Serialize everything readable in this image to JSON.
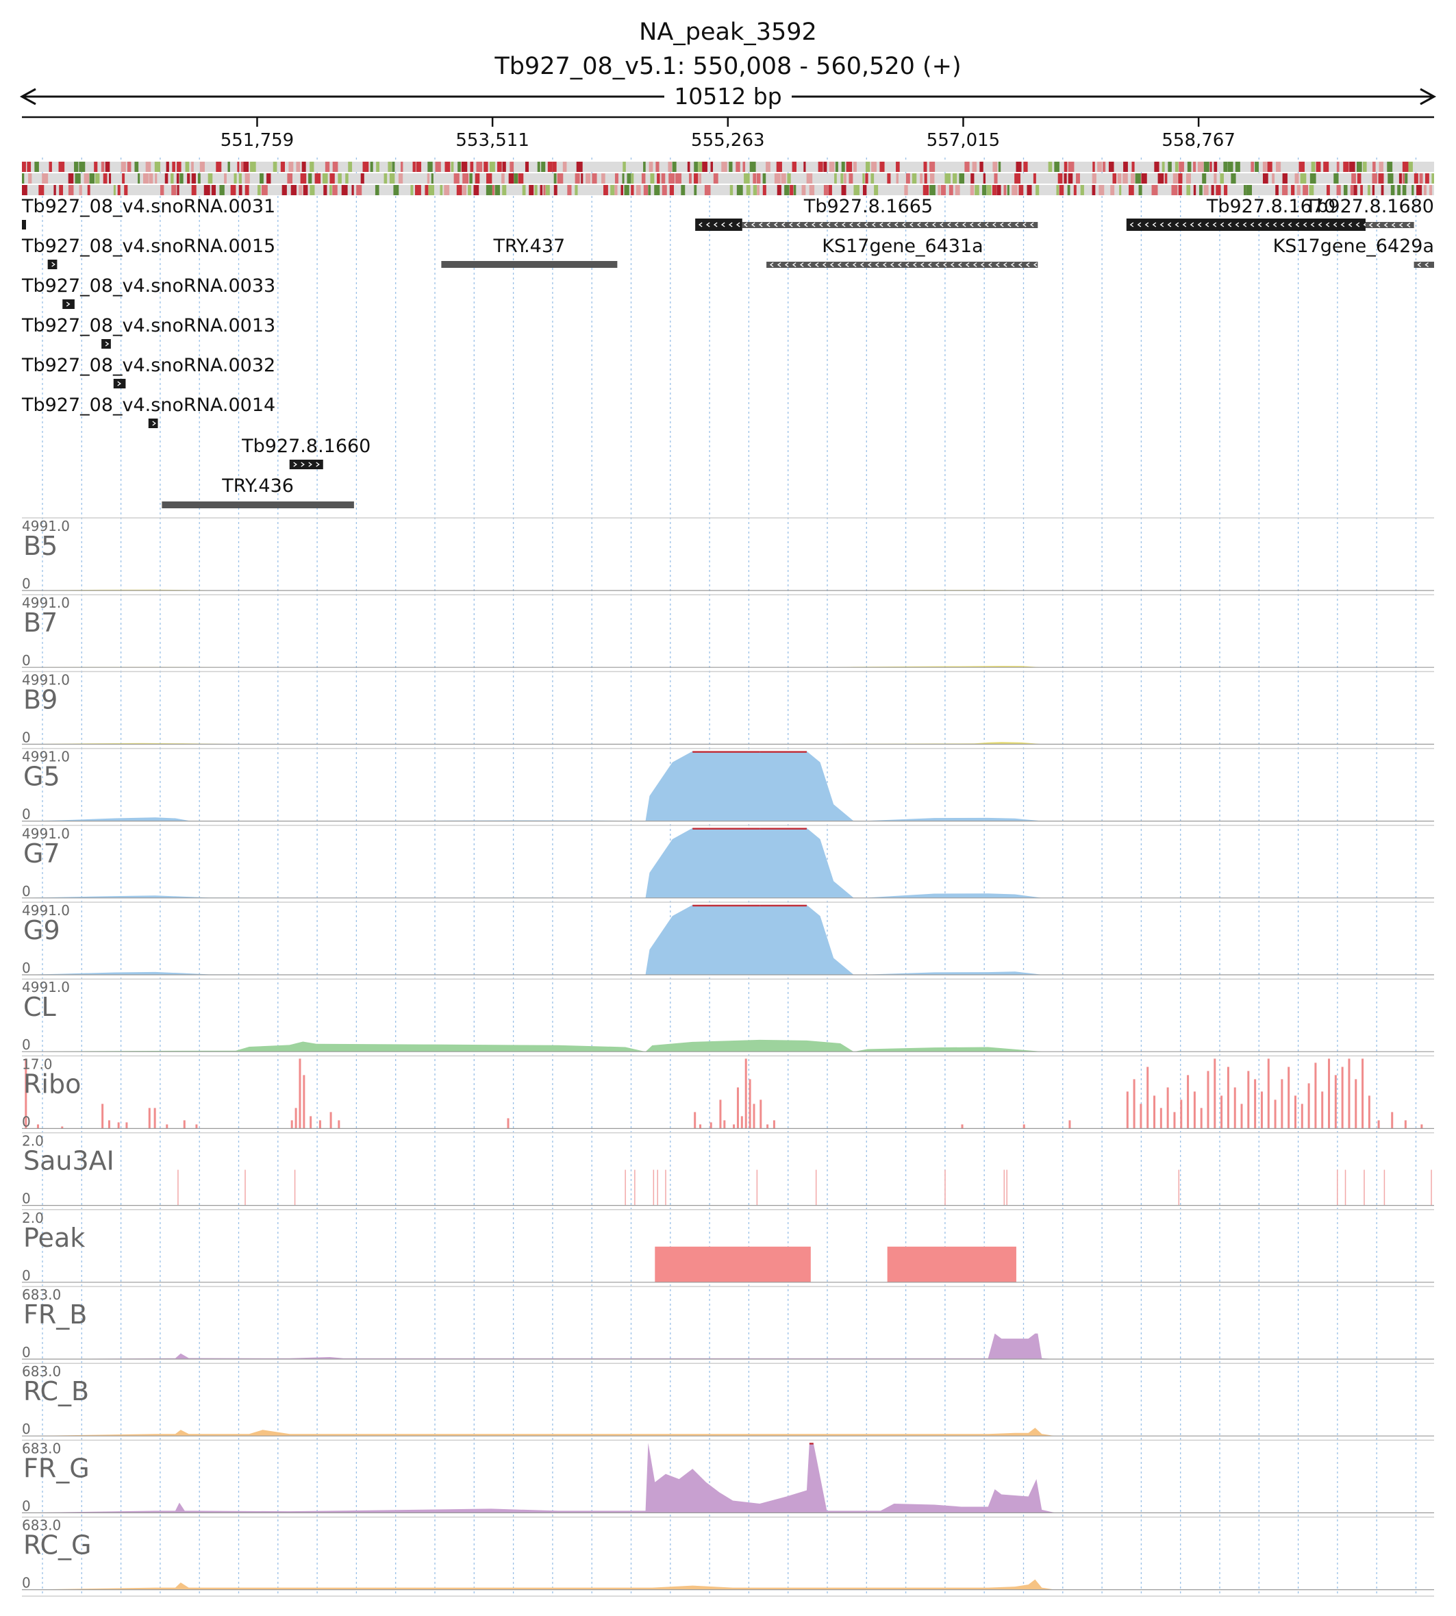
{
  "header": {
    "title": "NA_peak_3592",
    "location": "Tb927_08_v5.1: 550,008 - 560,520 (+)",
    "span_label": "10512 bp"
  },
  "ruler": {
    "start": 550008,
    "end": 560520,
    "ticks": [
      {
        "pos": 551759,
        "label": "551,759"
      },
      {
        "pos": 553511,
        "label": "553,511"
      },
      {
        "pos": 555263,
        "label": "555,263"
      },
      {
        "pos": 557015,
        "label": "557,015"
      },
      {
        "pos": 558767,
        "label": "558,767"
      }
    ]
  },
  "colors": {
    "yellow": "#e6dc78",
    "blue": "#9ec8ea",
    "green": "#9dd39d",
    "ribo": "#f08c8c",
    "sau": "#f2a8a8",
    "peak": "#f48c8c",
    "purple": "#c8a0d0",
    "orange": "#f6c384",
    "gene_dark": "#1a1a1a",
    "gene_gray": "#555555",
    "grid": "#7fb0e0"
  },
  "genes": [
    {
      "label": "Tb927_08_v4.snoRNA.0031",
      "start": 550008,
      "end": 550022,
      "strand": "+",
      "style": "dark"
    },
    {
      "label": "Tb927_08_v4.snoRNA.0015",
      "start": 550200,
      "end": 550270,
      "strand": "+",
      "style": "dark"
    },
    {
      "label": "Tb927_08_v4.snoRNA.0033",
      "start": 550310,
      "end": 550400,
      "strand": "+",
      "style": "dark"
    },
    {
      "label": "Tb927_08_v4.snoRNA.0013",
      "start": 550600,
      "end": 550670,
      "strand": "+",
      "style": "dark"
    },
    {
      "label": "Tb927_08_v4.snoRNA.0032",
      "start": 550690,
      "end": 550780,
      "strand": "+",
      "style": "dark"
    },
    {
      "label": "Tb927_08_v4.snoRNA.0014",
      "start": 550950,
      "end": 551020,
      "strand": "+",
      "style": "dark"
    },
    {
      "label": "Tb927.8.1660",
      "start": 552000,
      "end": 552250,
      "strand": "+",
      "style": "dark"
    },
    {
      "label": "TRY.436",
      "start": 551050,
      "end": 552480,
      "strand": "",
      "style": "plain"
    },
    {
      "label": "TRY.437",
      "start": 553130,
      "end": 554440,
      "strand": "",
      "style": "plain"
    },
    {
      "label": "Tb927.8.1665",
      "start": 555020,
      "end": 557570,
      "strand": "-",
      "style": "split",
      "thick_end": 555370
    },
    {
      "label": "KS17gene_6431a",
      "start": 555550,
      "end": 557570,
      "strand": "-",
      "style": "gray"
    },
    {
      "label": "Tb927.8.1670",
      "start": 558230,
      "end": 560370,
      "strand": "-",
      "style": "split_right",
      "thick_end": 560010
    },
    {
      "label": "Tb927.8.1680",
      "start": 560010,
      "end": 560370,
      "strand": "-",
      "style": "gray"
    },
    {
      "label": "KS17gene_6429a",
      "start": 560370,
      "end": 560520,
      "strand": "-",
      "style": "gray"
    }
  ],
  "tracks": [
    {
      "name": "B5",
      "scale_max": "4991.0",
      "scale_min": "0",
      "color": "#e6dc78",
      "kind": "area",
      "x": [
        550008,
        550200,
        550600,
        551000,
        551400,
        551700,
        551850,
        552500,
        553000,
        553500,
        554000,
        554500,
        554850,
        555300,
        555650,
        556000,
        556200,
        556800,
        557200,
        557400,
        557600,
        558000,
        559000,
        560520
      ],
      "y": [
        0,
        25,
        55,
        60,
        25,
        5,
        15,
        20,
        20,
        18,
        20,
        18,
        10,
        10,
        0,
        5,
        20,
        45,
        40,
        25,
        5,
        3,
        3,
        0
      ]
    },
    {
      "name": "B7",
      "scale_max": "4991.0",
      "scale_min": "0",
      "color": "#e6dc78",
      "kind": "area",
      "x": [
        550008,
        550200,
        550600,
        551000,
        551400,
        551700,
        551850,
        552500,
        553500,
        554500,
        554850,
        555300,
        555650,
        556000,
        556200,
        556800,
        557000,
        557300,
        557450,
        557600,
        558000,
        560520
      ],
      "y": [
        0,
        15,
        30,
        35,
        15,
        5,
        10,
        12,
        12,
        12,
        5,
        5,
        0,
        5,
        40,
        75,
        85,
        110,
        100,
        5,
        0,
        0
      ]
    },
    {
      "name": "B9",
      "scale_max": "4991.0",
      "scale_min": "0",
      "color": "#e6dc78",
      "kind": "area",
      "x": [
        550008,
        550200,
        550600,
        550900,
        551200,
        551500,
        551700,
        551900,
        552500,
        553500,
        554500,
        554850,
        555300,
        555650,
        556000,
        556200,
        556800,
        557100,
        557200,
        557300,
        557450,
        557600,
        558000,
        560520
      ],
      "y": [
        0,
        25,
        65,
        80,
        60,
        25,
        8,
        12,
        14,
        14,
        12,
        5,
        5,
        0,
        8,
        30,
        50,
        55,
        130,
        160,
        130,
        8,
        0,
        0
      ]
    },
    {
      "name": "G5",
      "scale_max": "4991.0",
      "scale_min": "0",
      "color": "#9ec8ea",
      "kind": "area",
      "x": [
        550008,
        550300,
        550700,
        551000,
        551150,
        551250,
        551400,
        552000,
        552800,
        553200,
        553700,
        554300,
        554650,
        554680,
        554850,
        555000,
        555500,
        555850,
        555950,
        556050,
        556200,
        556300,
        556800,
        557200,
        557400,
        557450,
        557600,
        558000,
        560520
      ],
      "y": [
        0,
        60,
        200,
        260,
        200,
        30,
        15,
        15,
        15,
        40,
        55,
        40,
        20,
        1800,
        4200,
        4991,
        4991,
        4991,
        4200,
        1200,
        0,
        20,
        220,
        230,
        190,
        140,
        10,
        0,
        0
      ]
    },
    {
      "name": "G7",
      "scale_max": "4991.0",
      "scale_min": "0",
      "color": "#9ec8ea",
      "kind": "area",
      "x": [
        550008,
        550300,
        550700,
        551000,
        551200,
        551400,
        552000,
        552800,
        553300,
        553800,
        554300,
        554650,
        554680,
        554850,
        555000,
        555500,
        555850,
        555950,
        556050,
        556200,
        556300,
        556800,
        557200,
        557400,
        557600,
        558000,
        560520
      ],
      "y": [
        0,
        60,
        130,
        175,
        100,
        25,
        20,
        20,
        20,
        25,
        15,
        10,
        1800,
        4200,
        4991,
        4991,
        4991,
        4200,
        1200,
        0,
        20,
        310,
        320,
        260,
        10,
        0,
        0
      ]
    },
    {
      "name": "G9",
      "scale_max": "4991.0",
      "scale_min": "0",
      "color": "#9ec8ea",
      "kind": "area",
      "x": [
        550008,
        550300,
        550700,
        551000,
        551200,
        551400,
        552000,
        552800,
        553300,
        553800,
        554300,
        554650,
        554680,
        554850,
        555000,
        555500,
        555850,
        555950,
        556050,
        556200,
        556300,
        556800,
        557200,
        557400,
        557600,
        558000,
        560520
      ],
      "y": [
        0,
        70,
        170,
        200,
        120,
        30,
        20,
        20,
        20,
        25,
        15,
        10,
        1800,
        4200,
        4991,
        4991,
        4991,
        4200,
        1200,
        0,
        20,
        180,
        190,
        230,
        10,
        0,
        0
      ]
    },
    {
      "name": "CL",
      "scale_max": "4991.0",
      "scale_min": "0",
      "color": "#9dd39d",
      "kind": "area",
      "x": [
        550008,
        550500,
        551000,
        551600,
        551700,
        552000,
        552100,
        552200,
        553000,
        554000,
        554500,
        554650,
        554700,
        555000,
        555500,
        555850,
        556100,
        556200,
        556300,
        556800,
        557200,
        557600,
        558000,
        558200,
        560520
      ],
      "y": [
        0,
        40,
        60,
        70,
        350,
        480,
        720,
        560,
        520,
        460,
        330,
        0,
        450,
        700,
        850,
        800,
        600,
        0,
        180,
        300,
        330,
        10,
        0,
        0,
        0
      ]
    },
    {
      "name": "Ribo",
      "scale_max": "17.0",
      "scale_min": "0",
      "color": "#f08c8c",
      "kind": "bars",
      "bars": [
        [
          550030,
          17
        ],
        [
          550120,
          1
        ],
        [
          550300,
          0.5
        ],
        [
          550600,
          6
        ],
        [
          550650,
          2
        ],
        [
          550720,
          1.5
        ],
        [
          550780,
          1.5
        ],
        [
          550950,
          5
        ],
        [
          550990,
          5
        ],
        [
          551080,
          1
        ],
        [
          551210,
          2
        ],
        [
          551300,
          1
        ],
        [
          552010,
          2
        ],
        [
          552040,
          5
        ],
        [
          552070,
          17
        ],
        [
          552100,
          13
        ],
        [
          552150,
          3
        ],
        [
          552220,
          2
        ],
        [
          552300,
          4
        ],
        [
          552360,
          2
        ],
        [
          553620,
          2.5
        ],
        [
          555010,
          4
        ],
        [
          555050,
          1
        ],
        [
          555130,
          1.5
        ],
        [
          555200,
          7
        ],
        [
          555230,
          2
        ],
        [
          555300,
          1
        ],
        [
          555330,
          10
        ],
        [
          555360,
          3
        ],
        [
          555390,
          17
        ],
        [
          555420,
          12
        ],
        [
          555450,
          6
        ],
        [
          555500,
          7
        ],
        [
          555550,
          1
        ],
        [
          555600,
          2
        ],
        [
          557000,
          1
        ],
        [
          557460,
          1
        ],
        [
          557800,
          2
        ],
        [
          558230,
          9
        ],
        [
          558280,
          12
        ],
        [
          558330,
          6
        ],
        [
          558380,
          15
        ],
        [
          558430,
          8
        ],
        [
          558480,
          5
        ],
        [
          558530,
          10
        ],
        [
          558580,
          4
        ],
        [
          558630,
          7
        ],
        [
          558680,
          13
        ],
        [
          558730,
          9
        ],
        [
          558780,
          5
        ],
        [
          558830,
          14
        ],
        [
          558880,
          17
        ],
        [
          558930,
          8
        ],
        [
          558980,
          15
        ],
        [
          559030,
          10
        ],
        [
          559080,
          6
        ],
        [
          559130,
          14
        ],
        [
          559180,
          12
        ],
        [
          559230,
          9
        ],
        [
          559280,
          17
        ],
        [
          559330,
          7
        ],
        [
          559380,
          12
        ],
        [
          559430,
          15
        ],
        [
          559480,
          8
        ],
        [
          559530,
          6
        ],
        [
          559580,
          11
        ],
        [
          559630,
          16
        ],
        [
          559680,
          9
        ],
        [
          559730,
          17
        ],
        [
          559780,
          13
        ],
        [
          559830,
          15
        ],
        [
          559880,
          17
        ],
        [
          559930,
          12
        ],
        [
          559980,
          17
        ],
        [
          560030,
          8
        ],
        [
          560100,
          2
        ],
        [
          560200,
          4
        ],
        [
          560300,
          2
        ],
        [
          560420,
          1
        ]
      ]
    },
    {
      "name": "Sau3AI",
      "scale_max": "2.0",
      "scale_min": "0",
      "color": "#f2a8a8",
      "kind": "lines",
      "lines": [
        551170,
        551670,
        552040,
        554500,
        554570,
        554710,
        554740,
        554800,
        555480,
        555920,
        556880,
        557320,
        557340,
        558620,
        559800,
        559860,
        560000,
        560150,
        560500
      ]
    },
    {
      "name": "Peak",
      "scale_max": "2.0",
      "scale_min": "0",
      "color": "#f48c8c",
      "kind": "blocks",
      "blocks": [
        [
          554720,
          555880
        ],
        [
          556450,
          557410
        ]
      ]
    },
    {
      "name": "FR_B",
      "scale_max": "683.0",
      "scale_min": "0",
      "color": "#c8a0d0",
      "kind": "area",
      "x": [
        550008,
        551100,
        551150,
        551190,
        551250,
        552000,
        552300,
        552400,
        553000,
        554000,
        554700,
        555300,
        556000,
        557000,
        557100,
        557200,
        557250,
        557300,
        557500,
        557550,
        557570,
        557600,
        557700,
        560520
      ],
      "y": [
        0,
        8,
        8,
        55,
        10,
        8,
        20,
        8,
        8,
        8,
        8,
        8,
        8,
        8,
        8,
        8,
        250,
        200,
        200,
        250,
        250,
        8,
        0,
        0
      ]
    },
    {
      "name": "RC_B",
      "scale_max": "683.0",
      "scale_min": "0",
      "color": "#f6c384",
      "kind": "area",
      "x": [
        550008,
        550500,
        551000,
        551150,
        551190,
        551250,
        551700,
        551800,
        552000,
        552200,
        552400,
        553000,
        554000,
        554700,
        555300,
        555800,
        556000,
        556500,
        557000,
        557200,
        557400,
        557500,
        557550,
        557600,
        557700,
        560520
      ],
      "y": [
        0,
        10,
        20,
        20,
        60,
        20,
        20,
        60,
        20,
        20,
        20,
        20,
        20,
        20,
        20,
        20,
        20,
        20,
        20,
        20,
        30,
        30,
        80,
        20,
        0,
        0
      ]
    },
    {
      "name": "FR_G",
      "scale_max": "683.0",
      "scale_min": "0",
      "color": "#c8a0d0",
      "kind": "area",
      "x": [
        550008,
        550500,
        551000,
        551150,
        551180,
        551220,
        551300,
        552000,
        553500,
        554000,
        554650,
        554670,
        554720,
        554800,
        554900,
        555000,
        555100,
        555200,
        555300,
        555500,
        555700,
        555850,
        555870,
        555900,
        556000,
        556400,
        556500,
        556800,
        557000,
        557200,
        557250,
        557300,
        557500,
        557560,
        557600,
        557700,
        560520
      ],
      "y": [
        0,
        10,
        20,
        20,
        100,
        20,
        20,
        15,
        40,
        20,
        20,
        683,
        300,
        380,
        330,
        430,
        300,
        200,
        120,
        90,
        160,
        220,
        683,
        683,
        20,
        20,
        90,
        80,
        60,
        60,
        230,
        180,
        160,
        330,
        30,
        0,
        0
      ]
    },
    {
      "name": "RC_G",
      "scale_max": "683.0",
      "scale_min": "0",
      "color": "#f6c384",
      "kind": "area",
      "x": [
        550008,
        550500,
        551000,
        551150,
        551190,
        551250,
        552000,
        553000,
        554000,
        554700,
        555000,
        555300,
        555600,
        556000,
        556500,
        557000,
        557200,
        557400,
        557500,
        557550,
        557600,
        557700,
        560520
      ],
      "y": [
        0,
        10,
        20,
        20,
        70,
        20,
        20,
        20,
        20,
        20,
        40,
        20,
        20,
        20,
        20,
        20,
        20,
        30,
        50,
        100,
        20,
        0,
        0
      ]
    }
  ]
}
